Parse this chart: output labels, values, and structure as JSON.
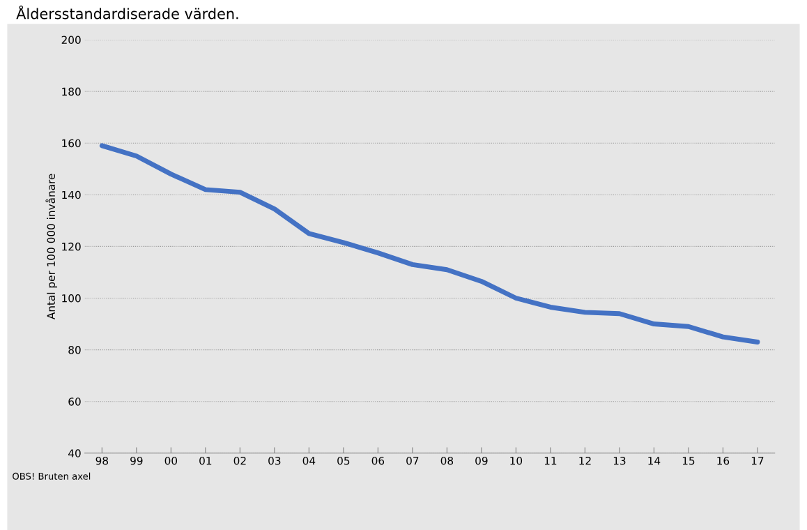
{
  "chart_data": {
    "type": "line",
    "title": "Åldersstandardiserade värden.",
    "ylabel": "Antal per 100 000 invånare",
    "categories": [
      "98",
      "99",
      "00",
      "01",
      "02",
      "03",
      "04",
      "05",
      "06",
      "07",
      "08",
      "09",
      "10",
      "11",
      "12",
      "13",
      "14",
      "15",
      "16",
      "17"
    ],
    "series": [
      {
        "color": "#4472c4",
        "values": [
          159,
          155,
          148,
          142,
          141,
          134.5,
          125,
          121.5,
          117.5,
          113,
          111,
          106.5,
          100,
          96.5,
          94.5,
          94,
          90,
          89,
          85,
          83
        ]
      }
    ],
    "ylim": [
      40,
      200
    ],
    "yticks": [
      40,
      60,
      80,
      100,
      120,
      140,
      160,
      180,
      200
    ],
    "grid": "y",
    "marker": "none",
    "line_style": "solid",
    "annotations": [
      "OBS! Bruten axel"
    ]
  }
}
